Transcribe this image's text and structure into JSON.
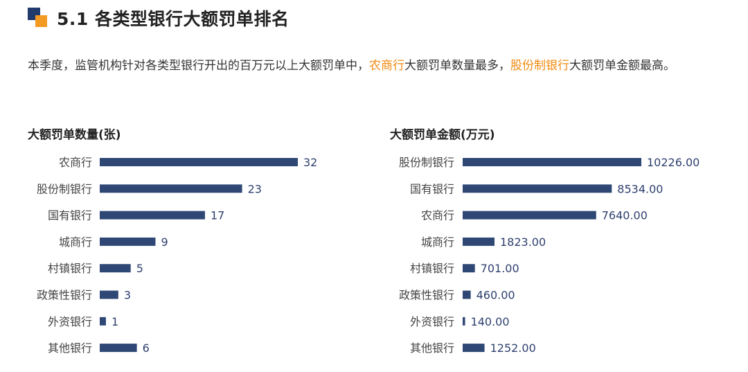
{
  "header": {
    "title": "5.1 各类型银行大额罚单排名"
  },
  "intro": {
    "part1": "本季度，监管机构针对各类型银行开出的百万元以上大额罚单中，",
    "highlight1": "农商行",
    "part2": "大额罚单数量最多，",
    "highlight2": "股份制银行",
    "part3": "大额罚单金额最高。",
    "highlight_color": "#f08a10"
  },
  "chart_data": [
    {
      "type": "bar",
      "orientation": "horizontal",
      "title": "大额罚单数量(张)",
      "categories": [
        "农商行",
        "股份制银行",
        "国有银行",
        "城商行",
        "村镇银行",
        "政策性银行",
        "外资银行",
        "其他银行"
      ],
      "values": [
        32,
        23,
        17,
        9,
        5,
        3,
        1,
        6
      ],
      "value_labels": [
        "32",
        "23",
        "17",
        "9",
        "5",
        "3",
        "1",
        "6"
      ],
      "bar_color": "#2f4775",
      "grid": false
    },
    {
      "type": "bar",
      "orientation": "horizontal",
      "title": "大额罚单金额(万元)",
      "categories": [
        "股份制银行",
        "国有银行",
        "农商行",
        "城商行",
        "村镇银行",
        "政策性银行",
        "外资银行",
        "其他银行"
      ],
      "values": [
        10226.0,
        8534.0,
        7640.0,
        1823.0,
        701.0,
        460.0,
        140.0,
        1252.0
      ],
      "value_labels": [
        "10226.00",
        "8534.00",
        "7640.00",
        "1823.00",
        "701.00",
        "460.00",
        "140.00",
        "1252.00"
      ],
      "bar_color": "#2f4775",
      "grid": false
    }
  ]
}
